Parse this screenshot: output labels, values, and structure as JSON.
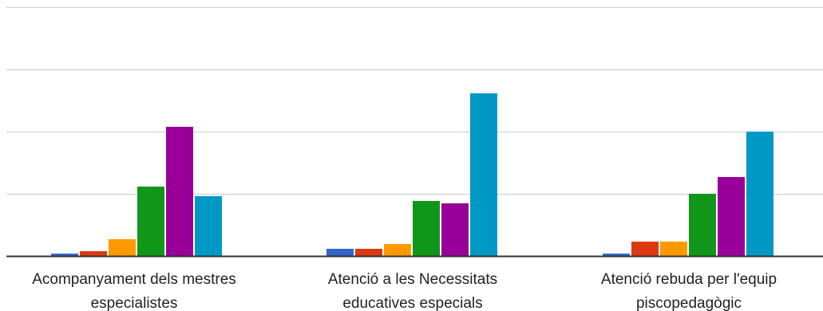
{
  "chart_data": {
    "type": "bar",
    "title": "",
    "xlabel": "",
    "ylabel": "",
    "ylim": [
      0,
      52
    ],
    "gridlines": [
      0,
      13,
      26,
      39,
      52
    ],
    "categories": [
      [
        "Acompanyament dels mestres",
        "especialistes"
      ],
      [
        "Atenció a les Necessitats",
        "educatives especials"
      ],
      [
        "Atenció rebuda per l'equip",
        "piscopedagògic"
      ]
    ],
    "series": [
      {
        "color": "#3366cc",
        "values": [
          0.5,
          1.5,
          0.5
        ]
      },
      {
        "color": "#dc3912",
        "values": [
          1.0,
          1.5,
          3.0
        ]
      },
      {
        "color": "#ff9900",
        "values": [
          3.5,
          2.5,
          3.0
        ]
      },
      {
        "color": "#109618",
        "values": [
          14.5,
          11.5,
          13.0
        ]
      },
      {
        "color": "#990099",
        "values": [
          27.0,
          11.0,
          16.5
        ]
      },
      {
        "color": "#0099c6",
        "values": [
          12.5,
          34.0,
          26.0
        ]
      }
    ],
    "grid": true,
    "legend": "none"
  }
}
